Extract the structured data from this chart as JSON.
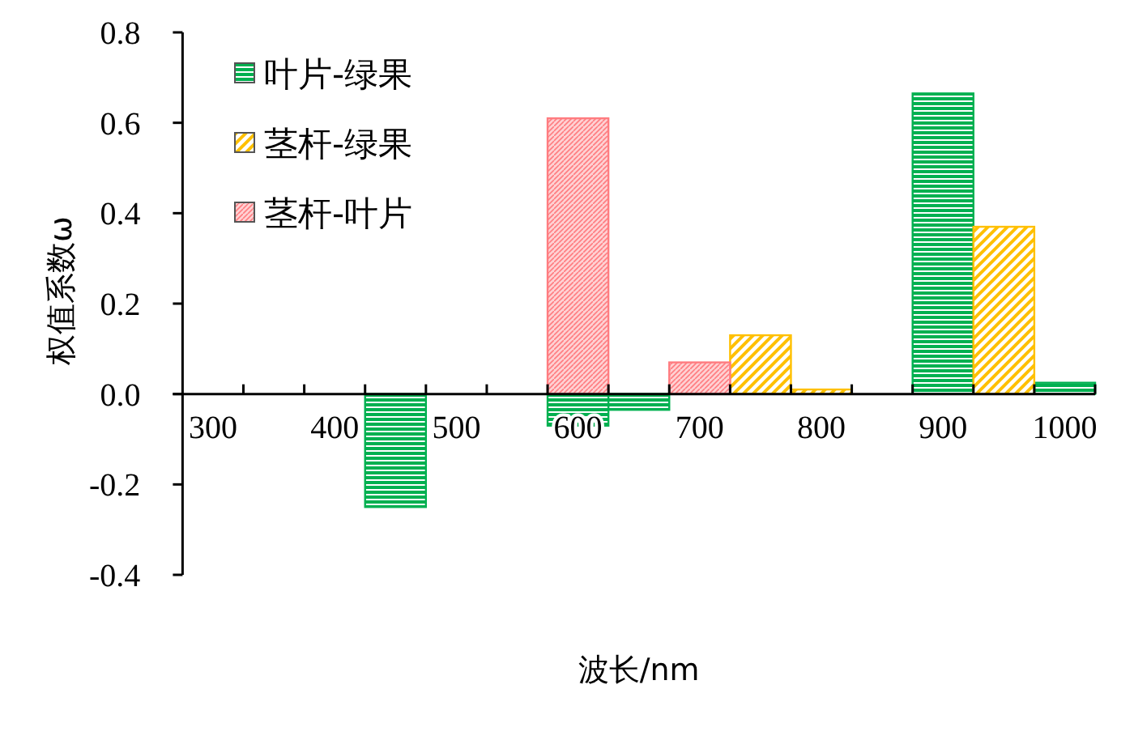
{
  "chart_data": {
    "type": "bar",
    "xlabel": "波长/nm",
    "ylabel": "权值系数ω",
    "categories": [
      "300",
      null,
      "400",
      null,
      "500",
      null,
      "600",
      null,
      "700",
      null,
      "800",
      null,
      "900",
      null,
      "1000"
    ],
    "series": [
      {
        "name": "叶片-绿果",
        "color": "#00b050",
        "values": [
          null,
          null,
          null,
          -0.25,
          null,
          null,
          -0.07,
          -0.035,
          null,
          null,
          null,
          null,
          0.665,
          null,
          0.025
        ]
      },
      {
        "name": "茎杆-绿果",
        "color": "#ffc000",
        "values": [
          null,
          null,
          null,
          null,
          null,
          null,
          null,
          null,
          null,
          0.13,
          0.01,
          null,
          null,
          0.37,
          null
        ]
      },
      {
        "name": "茎杆-叶片",
        "color": "#ff7c80",
        "values": [
          null,
          null,
          null,
          null,
          null,
          null,
          0.61,
          null,
          0.07,
          null,
          null,
          null,
          null,
          null,
          null
        ]
      }
    ],
    "ylim": [
      -0.4,
      0.8
    ],
    "yticks": [
      {
        "value": 0.8,
        "label": "0.8"
      },
      {
        "value": 0.6,
        "label": "0.6"
      },
      {
        "value": 0.4,
        "label": "0.4"
      },
      {
        "value": 0.2,
        "label": "0.2"
      },
      {
        "value": 0,
        "label": "0.0"
      },
      {
        "value": -0.2,
        "label": "-0.2"
      },
      {
        "value": -0.4,
        "label": "-0.4"
      }
    ],
    "legend": "top left",
    "grid": false
  }
}
